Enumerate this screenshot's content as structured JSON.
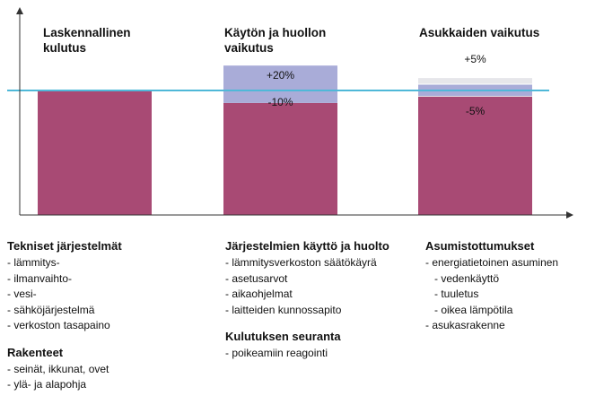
{
  "chart_data": {
    "type": "bar",
    "categories": [
      "Laskennallinen kulutus",
      "Käytön ja huollon vaikutus",
      "Asukkaiden vaikutus"
    ],
    "series": [
      {
        "values": [
          100,
          90,
          95
        ]
      },
      {
        "values": [
          0,
          30,
          10
        ]
      },
      {
        "values": [
          0,
          0,
          5
        ]
      }
    ],
    "deltas": [
      null,
      {
        "up": "+20%",
        "down": "-10%"
      },
      {
        "up": "+5%",
        "down": "-5%"
      }
    ],
    "reference_value": 100,
    "ylim": [
      0,
      158
    ],
    "grid": false,
    "colors": {
      "base": "#a84a74",
      "band": "#a9acd8",
      "band_light": "#e6e6ea",
      "reference": "#4fb8d8",
      "axis": "#333333",
      "separator": "#ffffff"
    }
  },
  "titles": {
    "c1": [
      "Laskennallinen",
      "kulutus"
    ],
    "c2": [
      "Käytön ja huollon",
      "vaikutus"
    ],
    "c3": [
      "Asukkaiden vaikutus"
    ]
  },
  "notes": {
    "col1": {
      "heading1": "Tekniset järjestelmät",
      "items1": [
        "- lämmitys-",
        "- ilmanvaihto-",
        "- vesi-",
        "- sähköjärjestelmä",
        "- verkoston tasapaino"
      ],
      "heading2": "Rakenteet",
      "items2": [
        "- seinät, ikkunat, ovet",
        "- ylä- ja alapohja"
      ]
    },
    "col2": {
      "heading1": "Järjestelmien käyttö ja huolto",
      "items1": [
        "- lämmitysverkoston säätökäyrä",
        "- asetusarvot",
        "- aikaohjelmat",
        "- laitteiden kunnossapito"
      ],
      "heading2": "Kulutuksen seuranta",
      "items2": [
        "- poikeamiin reagointi"
      ]
    },
    "col3": {
      "heading1": "Asumistottumukset",
      "items1": [
        "- energiatietoinen asuminen",
        "- vedenkäyttö",
        "- tuuletus",
        "- oikea lämpötila",
        "- asukasrakenne"
      ]
    }
  }
}
